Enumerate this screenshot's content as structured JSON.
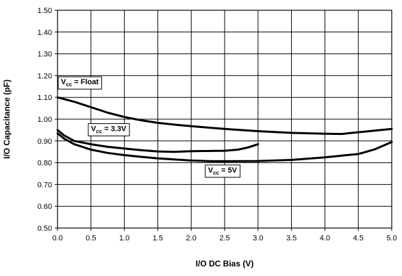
{
  "chart_data": {
    "type": "line",
    "xlabel": "I/O DC Bias (V)",
    "ylabel": "I/O Capacitance (pF)",
    "xlim": [
      0.0,
      5.0
    ],
    "ylim": [
      0.5,
      1.5
    ],
    "x_ticks": [
      "0.0",
      "0.5",
      "1.0",
      "1.5",
      "2.0",
      "2.5",
      "3.0",
      "3.5",
      "4.0",
      "4.5",
      "5.0"
    ],
    "y_ticks": [
      "0.50",
      "0.60",
      "0.70",
      "0.80",
      "0.90",
      "1.00",
      "1.10",
      "1.20",
      "1.30",
      "1.40",
      "1.50"
    ],
    "grid": true,
    "series": [
      {
        "name": "Vcc = Float",
        "label_main": "V",
        "label_sub": "cc",
        "label_rest": " = Float",
        "x": [
          0.0,
          0.25,
          0.5,
          0.75,
          1.0,
          1.25,
          1.5,
          1.75,
          2.0,
          2.5,
          3.0,
          3.5,
          4.0,
          4.25,
          4.5,
          5.0
        ],
        "y": [
          1.1,
          1.08,
          1.055,
          1.03,
          1.01,
          0.995,
          0.983,
          0.975,
          0.968,
          0.955,
          0.945,
          0.937,
          0.933,
          0.932,
          0.94,
          0.955
        ]
      },
      {
        "name": "Vcc = 3.3V",
        "label_main": "V",
        "label_sub": "cc",
        "label_rest": " = 3.3V",
        "x": [
          0.0,
          0.1,
          0.25,
          0.5,
          0.75,
          1.0,
          1.25,
          1.5,
          1.75,
          2.0,
          2.5,
          2.7,
          2.85,
          3.0
        ],
        "y": [
          0.95,
          0.925,
          0.9,
          0.885,
          0.873,
          0.865,
          0.858,
          0.852,
          0.85,
          0.853,
          0.855,
          0.86,
          0.87,
          0.885
        ]
      },
      {
        "name": "Vcc = 5V",
        "label_main": "V",
        "label_sub": "cc",
        "label_rest": " = 5V",
        "x": [
          0.0,
          0.1,
          0.25,
          0.5,
          0.75,
          1.0,
          1.25,
          1.5,
          2.0,
          2.3,
          2.5,
          3.0,
          3.5,
          4.0,
          4.5,
          4.75,
          5.0
        ],
        "y": [
          0.935,
          0.91,
          0.885,
          0.86,
          0.845,
          0.835,
          0.827,
          0.82,
          0.81,
          0.807,
          0.807,
          0.808,
          0.813,
          0.825,
          0.84,
          0.862,
          0.895
        ]
      }
    ],
    "annotations": [
      {
        "series": 0,
        "at": [
          0.0,
          1.16
        ]
      },
      {
        "series": 1,
        "at": [
          0.45,
          0.945
        ]
      },
      {
        "series": 2,
        "at": [
          2.2,
          0.755
        ]
      }
    ]
  }
}
